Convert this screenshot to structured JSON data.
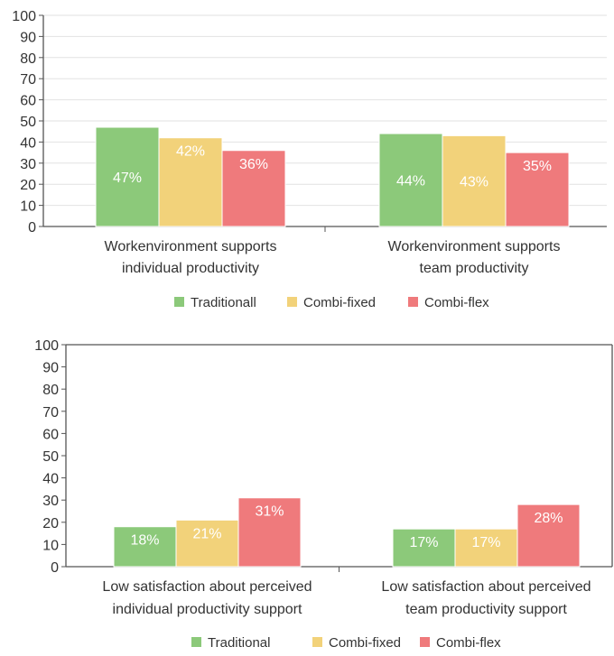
{
  "chart_data": [
    {
      "type": "bar",
      "ylim": [
        0,
        100
      ],
      "yticks": [
        0,
        10,
        20,
        30,
        40,
        50,
        60,
        70,
        80,
        90,
        100
      ],
      "grid": true,
      "legend_position": "bottom",
      "categories": [
        [
          "Workenvironment supports",
          "individual productivity"
        ],
        [
          "Workenvironment supports",
          "team productivity"
        ]
      ],
      "series": [
        {
          "name": "Traditionall",
          "color": "#8cc97a",
          "values": [
            47,
            44
          ],
          "labels": [
            "47%",
            "44%"
          ]
        },
        {
          "name": "Combi-fixed",
          "color": "#f2d27a",
          "values": [
            42,
            43
          ],
          "labels": [
            "42%",
            "43%"
          ]
        },
        {
          "name": "Combi-flex",
          "color": "#ef7a7c",
          "values": [
            36,
            35
          ],
          "labels": [
            "36%",
            "35%"
          ]
        }
      ]
    },
    {
      "type": "bar",
      "ylim": [
        0,
        100
      ],
      "yticks": [
        0,
        10,
        20,
        30,
        40,
        50,
        60,
        70,
        80,
        90,
        100
      ],
      "grid": false,
      "legend_position": "bottom",
      "categories": [
        [
          "Low satisfaction about perceived",
          "individual productivity support"
        ],
        [
          "Low satisfaction about perceived",
          "team productivity support"
        ]
      ],
      "series": [
        {
          "name": "Traditional",
          "color": "#8cc97a",
          "values": [
            18,
            17
          ],
          "labels": [
            "18%",
            "17%"
          ]
        },
        {
          "name": "Combi-fixed",
          "color": "#f2d27a",
          "values": [
            21,
            17
          ],
          "labels": [
            "21%",
            "17%"
          ]
        },
        {
          "name": "Combi-flex",
          "color": "#ef7a7c",
          "values": [
            31,
            28
          ],
          "labels": [
            "31%",
            "28%"
          ]
        }
      ]
    }
  ]
}
